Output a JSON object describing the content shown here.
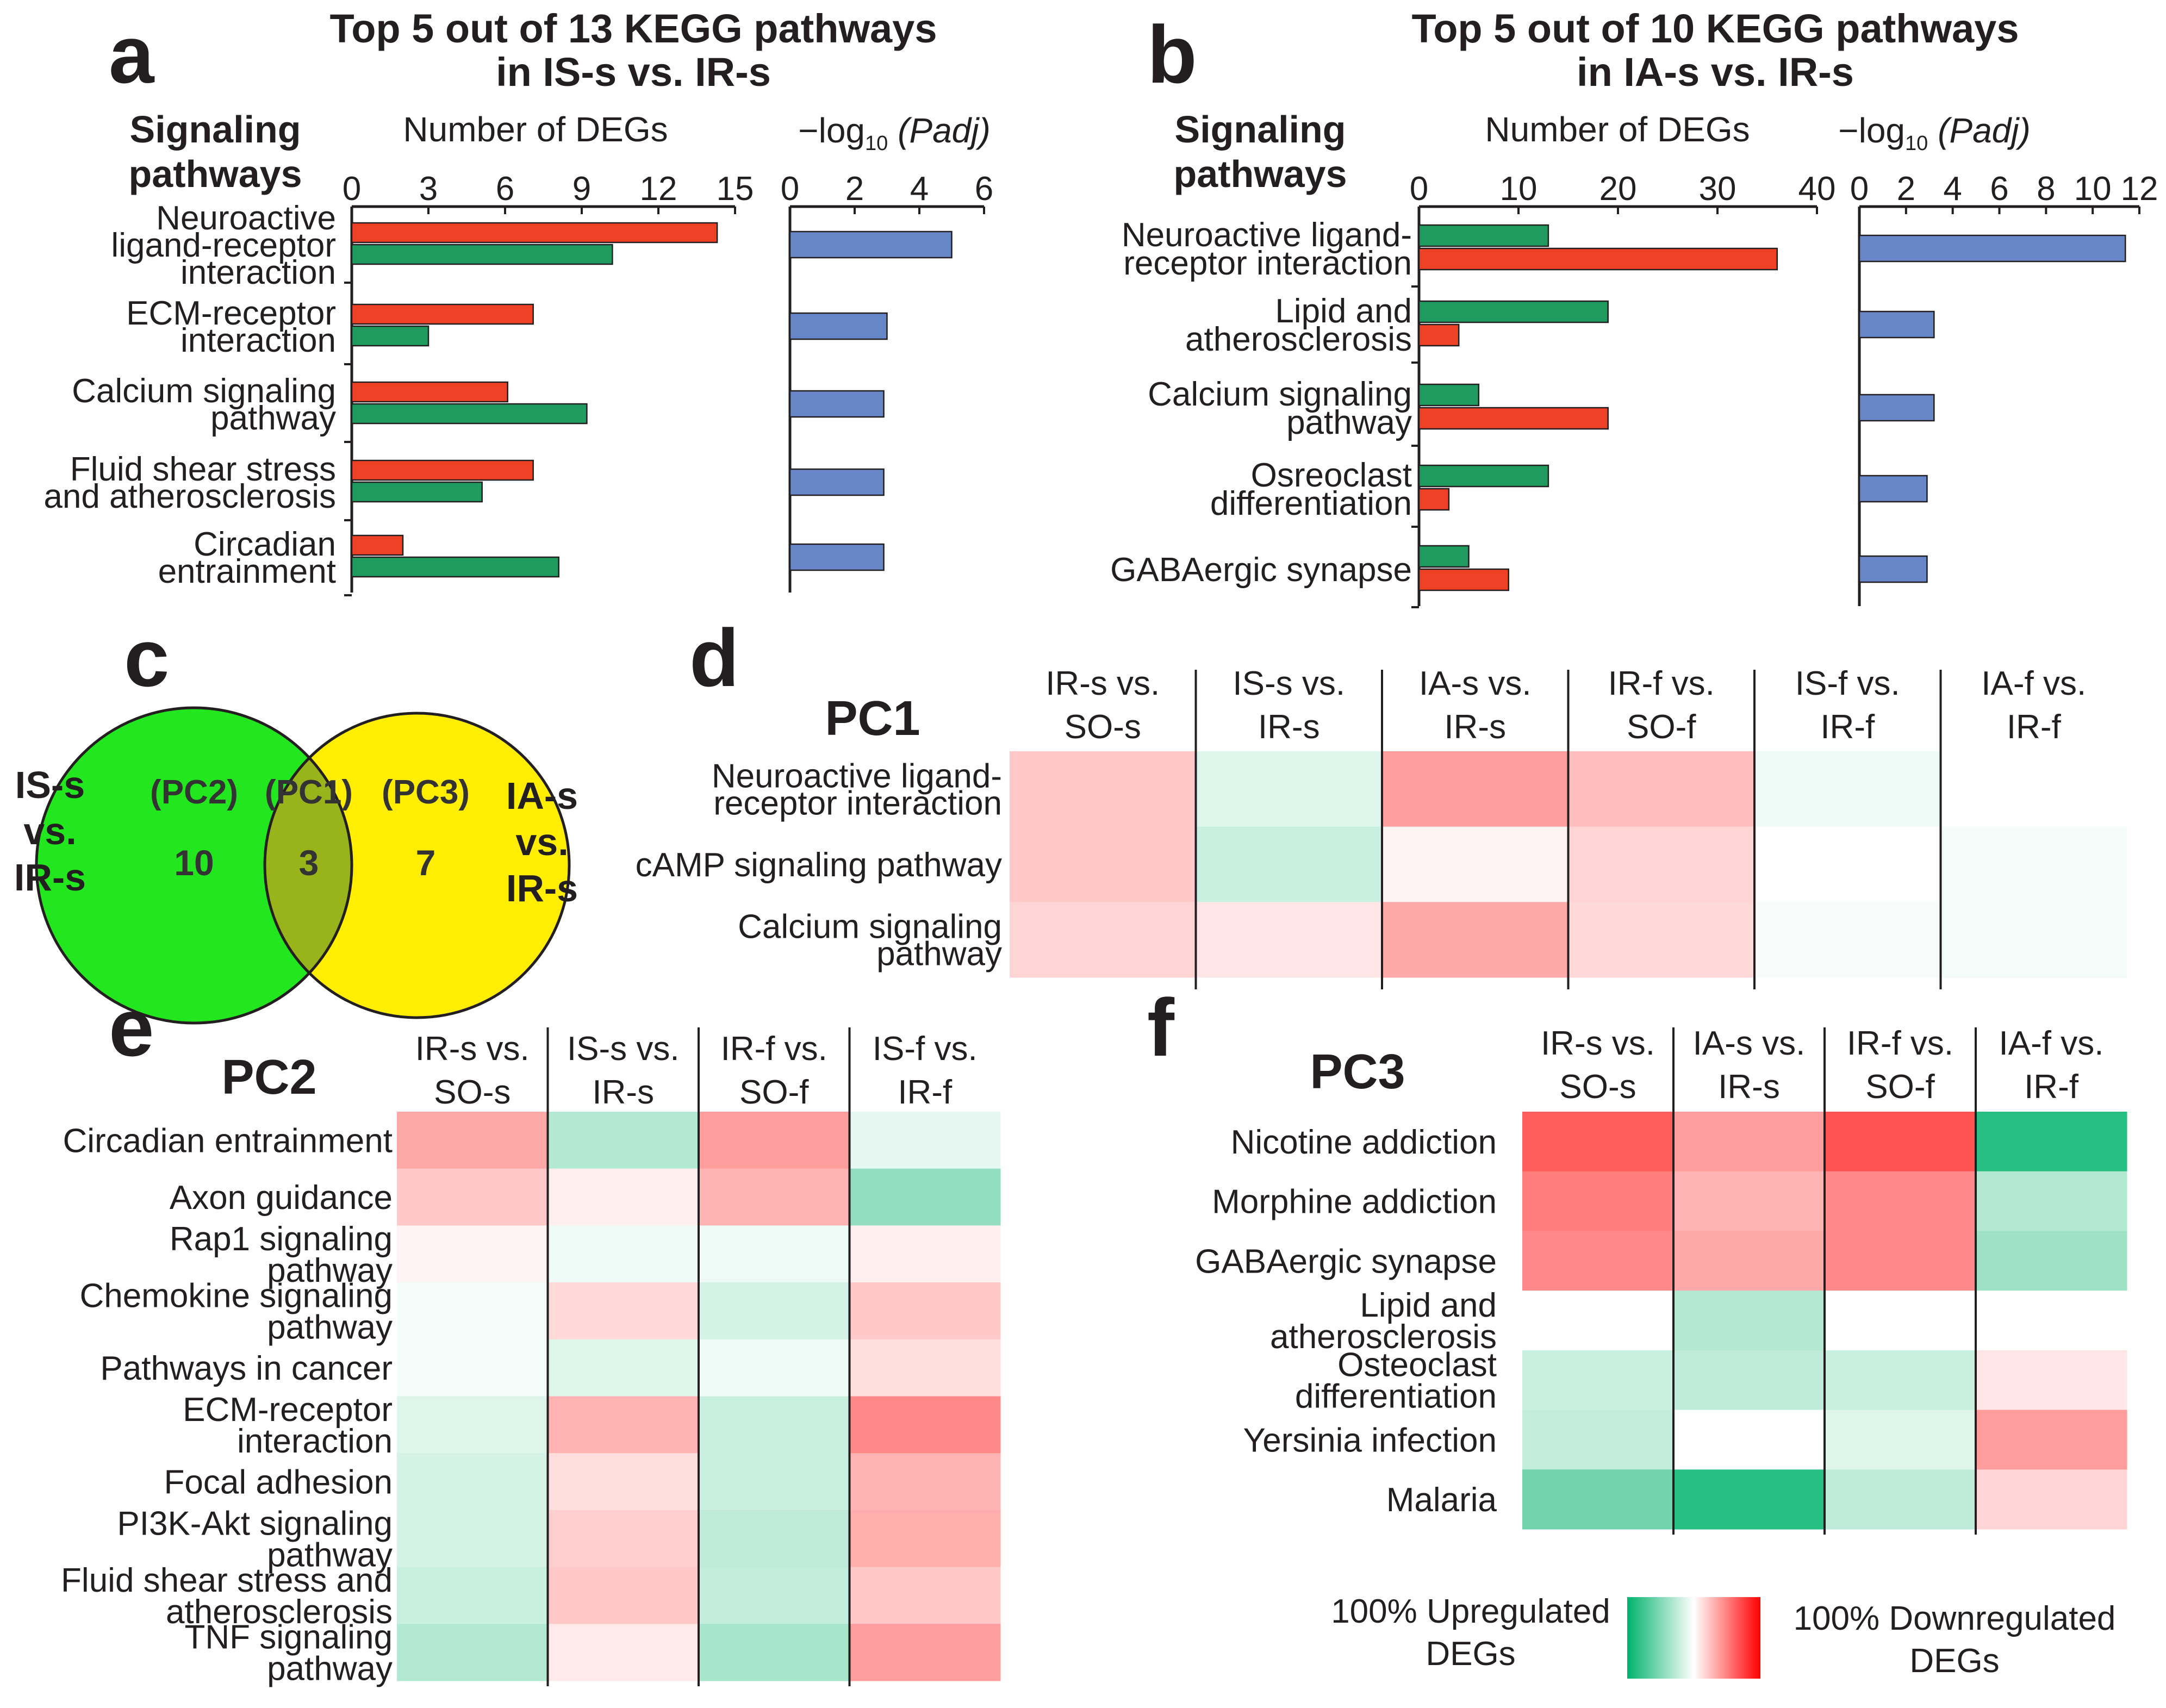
{
  "chart_data": [
    {
      "id": "a",
      "type": "bar",
      "panel_letter": "a",
      "title": [
        "Top 5 out of 13 KEGG pathways",
        "in IS-s vs. IR-s"
      ],
      "row_header": [
        "Signaling",
        "pathways"
      ],
      "xlabel_degs": "Number of DEGs",
      "xlabel_padj": [
        "−log",
        "10",
        " (Padj)"
      ],
      "deg_ticks": [
        "0",
        "3",
        "6",
        "9",
        "12",
        "15"
      ],
      "deg_xlim": [
        0,
        15
      ],
      "padj_ticks": [
        "0",
        "2",
        "4",
        "6"
      ],
      "padj_xlim": [
        0,
        6
      ],
      "categories": [
        [
          "Neuroactive",
          "ligand-receptor",
          "interaction"
        ],
        [
          "ECM-receptor",
          "interaction"
        ],
        [
          "Calcium signaling",
          "pathway"
        ],
        [
          "Fluid shear stress",
          "and atherosclerosis"
        ],
        [
          "Circadian",
          "entrainment"
        ]
      ],
      "series": [
        {
          "name": "red",
          "color": "#ef4125",
          "values": [
            14.3,
            7.1,
            6.1,
            7.1,
            2.0
          ]
        },
        {
          "name": "green",
          "color": "#1f9b5f",
          "values": [
            10.2,
            3.0,
            9.2,
            5.1,
            8.1
          ]
        }
      ],
      "padj_values": [
        5.0,
        3.0,
        2.9,
        2.9,
        2.9
      ],
      "padj_color": "#6786c8"
    },
    {
      "id": "b",
      "type": "bar",
      "panel_letter": "b",
      "title": [
        "Top 5 out of 10 KEGG pathways",
        "in IA-s vs. IR-s"
      ],
      "row_header": [
        "Signaling",
        "pathways"
      ],
      "xlabel_degs": "Number of DEGs",
      "xlabel_padj": [
        "−log",
        "10",
        " (Padj)"
      ],
      "deg_ticks": [
        "0",
        "10",
        "20",
        "30",
        "40"
      ],
      "deg_xlim": [
        0,
        40
      ],
      "padj_ticks": [
        "0",
        "2",
        "4",
        "6",
        "8",
        "10",
        "12"
      ],
      "padj_xlim": [
        0,
        12
      ],
      "categories": [
        [
          "Neuroactive ligand-",
          "receptor interaction"
        ],
        [
          "Lipid and",
          "atherosclerosis"
        ],
        [
          "Calcium signaling",
          "pathway"
        ],
        [
          "Osreoclast",
          "differentiation"
        ],
        [
          "GABAergic synapse"
        ]
      ],
      "series": [
        {
          "name": "green",
          "color": "#1f9b5f",
          "values": [
            13,
            19,
            6,
            13,
            5
          ]
        },
        {
          "name": "red",
          "color": "#ef4125",
          "values": [
            36,
            4,
            19,
            3,
            9
          ]
        }
      ],
      "padj_values": [
        11.4,
        3.2,
        3.2,
        2.9,
        2.9
      ],
      "padj_color": "#6786c8"
    },
    {
      "id": "c",
      "type": "venn",
      "panel_letter": "c",
      "left_label": [
        "IS-s",
        "vs.",
        "IR-s"
      ],
      "right_label": [
        "IA-s",
        "vs.",
        "IR-s"
      ],
      "sets": [
        {
          "label": "(PC2)",
          "value": "10",
          "color": "#22e61e"
        },
        {
          "label": "(PC1)",
          "value": "3",
          "color": "#99b41a"
        },
        {
          "label": "(PC3)",
          "value": "7",
          "color": "#ffee00"
        }
      ]
    },
    {
      "id": "d",
      "type": "heatmap",
      "panel_letter": "d",
      "title": "PC1",
      "columns": [
        [
          "IR-s vs.",
          "SO-s"
        ],
        [
          "IS-s vs.",
          "IR-s"
        ],
        [
          "IA-s vs.",
          "IR-s"
        ],
        [
          "IR-f vs.",
          "SO-f"
        ],
        [
          "IS-f vs.",
          "IR-f"
        ],
        [
          "IA-f vs.",
          "IR-f"
        ]
      ],
      "rows": [
        [
          "Neuroactive ligand-",
          "receptor interaction"
        ],
        [
          "cAMP signaling pathway"
        ],
        [
          "Calcium signaling",
          "pathway"
        ]
      ],
      "values": [
        [
          0.25,
          -0.15,
          0.45,
          0.3,
          -0.08,
          0
        ],
        [
          0.25,
          -0.25,
          0.05,
          0.2,
          0,
          -0.05
        ],
        [
          0.2,
          0.12,
          0.4,
          0.18,
          -0.03,
          -0.05
        ]
      ]
    },
    {
      "id": "e",
      "type": "heatmap",
      "panel_letter": "e",
      "title": "PC2",
      "columns": [
        [
          "IR-s vs.",
          "SO-s"
        ],
        [
          "IS-s vs.",
          "IR-s"
        ],
        [
          "IR-f vs.",
          "SO-f"
        ],
        [
          "IS-f vs.",
          "IR-f"
        ]
      ],
      "rows": [
        [
          "Circadian entrainment"
        ],
        [
          "Axon guidance"
        ],
        [
          "Rap1 signaling",
          "pathway"
        ],
        [
          "Chemokine signaling",
          "pathway"
        ],
        [
          "Pathways in cancer"
        ],
        [
          "ECM-receptor",
          "interaction"
        ],
        [
          "Focal adhesion"
        ],
        [
          "PI3K-Akt signaling",
          "pathway"
        ],
        [
          "Fluid shear stress and",
          "atherosclerosis"
        ],
        [
          "TNF signaling",
          "pathway"
        ]
      ],
      "values": [
        [
          0.4,
          -0.35,
          0.45,
          -0.12
        ],
        [
          0.25,
          0.08,
          0.35,
          -0.5
        ],
        [
          0.05,
          -0.08,
          -0.08,
          0.08
        ],
        [
          -0.05,
          0.18,
          -0.2,
          0.25
        ],
        [
          -0.05,
          -0.15,
          -0.08,
          0.15
        ],
        [
          -0.15,
          0.35,
          -0.25,
          0.55
        ],
        [
          -0.2,
          0.15,
          -0.25,
          0.35
        ],
        [
          -0.2,
          0.22,
          -0.3,
          0.38
        ],
        [
          -0.25,
          0.25,
          -0.28,
          0.25
        ],
        [
          -0.35,
          0.1,
          -0.4,
          0.45
        ]
      ]
    },
    {
      "id": "f",
      "type": "heatmap",
      "panel_letter": "f",
      "title": "PC3",
      "columns": [
        [
          "IR-s vs.",
          "SO-s"
        ],
        [
          "IA-s vs.",
          "IR-s"
        ],
        [
          "IR-f vs.",
          "SO-f"
        ],
        [
          "IA-f vs.",
          "IR-f"
        ]
      ],
      "rows": [
        [
          "Nicotine addiction"
        ],
        [
          "Morphine addiction"
        ],
        [
          "GABAergic synapse"
        ],
        [
          "Lipid and",
          "atherosclerosis"
        ],
        [
          "Osteoclast",
          "differentiation"
        ],
        [
          "Yersinia infection"
        ],
        [
          "Malaria"
        ]
      ],
      "values": [
        [
          0.75,
          0.45,
          0.8,
          -1.0
        ],
        [
          0.6,
          0.35,
          0.55,
          -0.35
        ],
        [
          0.55,
          0.4,
          0.55,
          -0.45
        ],
        [
          0,
          -0.35,
          0,
          0
        ],
        [
          -0.25,
          -0.3,
          -0.25,
          0.12
        ],
        [
          -0.28,
          0,
          -0.15,
          0.45
        ],
        [
          -0.65,
          -1.0,
          -0.3,
          0.2
        ]
      ]
    }
  ],
  "legend": {
    "left_label": [
      "100% Upregulated",
      "DEGs"
    ],
    "right_label": [
      "100% Downregulated",
      "DEGs"
    ],
    "up_color": "#00b26b",
    "down_color": "#ff0000"
  }
}
